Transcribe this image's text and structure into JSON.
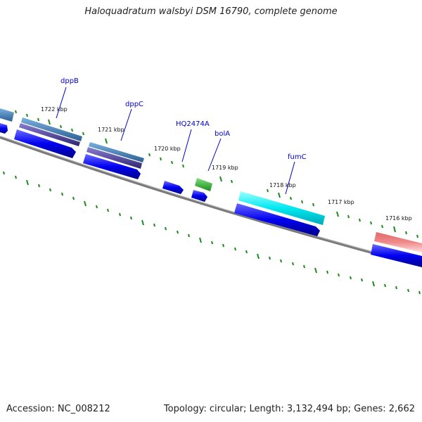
{
  "header": {
    "title": "Haloquadratum walsbyi DSM 16790, complete genome"
  },
  "footer": {
    "accession": "Accession: NC_008212",
    "summary": "Topology: circular; Length: 3,132,494 bp; Genes: 2,662"
  },
  "ticks": [
    "1722 kbp",
    "1721 kbp",
    "1720 kbp",
    "1719 kbp",
    "1718 kbp",
    "1717 kbp",
    "1716 kbp"
  ],
  "gene_labels": [
    "dppB",
    "dppC",
    "HQ2474A",
    "bolA",
    "fumC"
  ],
  "colors": {
    "backbone": "#7a7a7a",
    "cds": "#0000ee",
    "tick": "#1a8a1a",
    "label": "#0000cc"
  }
}
